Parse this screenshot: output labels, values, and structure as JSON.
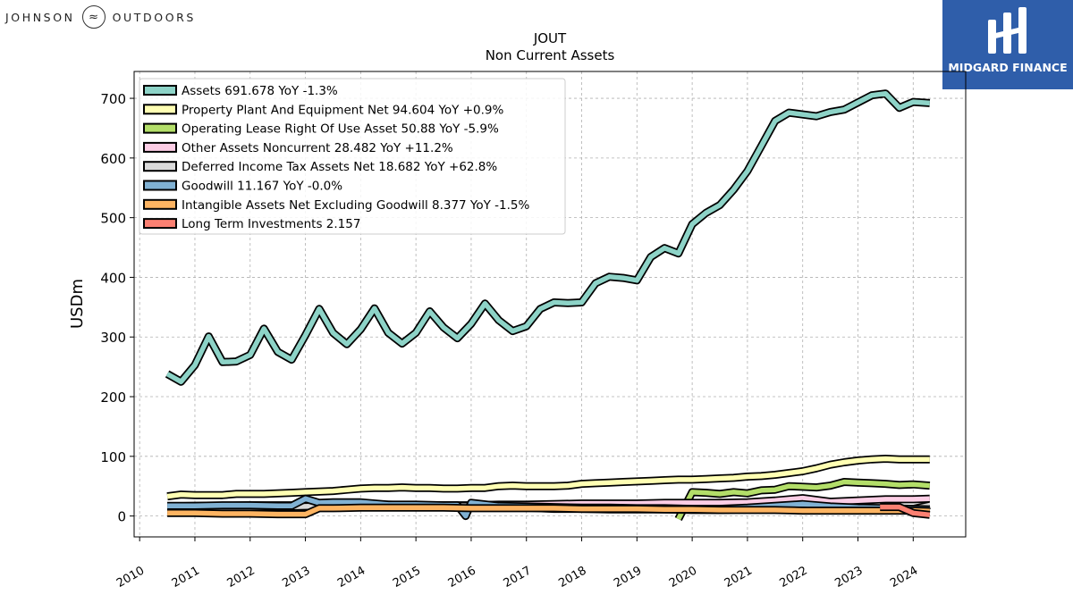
{
  "header": {
    "company_logo_left": "JOHNSON",
    "company_logo_right": "OUTDOORS",
    "brand_name": "MIDGARD FINANCE"
  },
  "chart_data": {
    "type": "line",
    "title": "JOUT",
    "subtitle": "Non Current  Assets",
    "ylabel": "USDm",
    "xlabel": "",
    "xlim": [
      2009.9,
      2024.95
    ],
    "ylim": [
      -35,
      745
    ],
    "yticks": [
      0,
      100,
      200,
      300,
      400,
      500,
      600,
      700
    ],
    "xticks": [
      2010,
      2011,
      2012,
      2013,
      2014,
      2015,
      2016,
      2017,
      2018,
      2019,
      2020,
      2021,
      2022,
      2023,
      2024
    ],
    "grid": true,
    "legend_position": "top-left",
    "series": [
      {
        "name": "Assets",
        "legend": "Assets  691.678 YoY -1.3%",
        "color": "#8dd3c7",
        "x": [
          2010.5,
          2010.75,
          2011.0,
          2011.25,
          2011.5,
          2011.75,
          2012.0,
          2012.25,
          2012.5,
          2012.75,
          2013.0,
          2013.25,
          2013.5,
          2013.75,
          2014.0,
          2014.25,
          2014.5,
          2014.75,
          2015.0,
          2015.25,
          2015.5,
          2015.75,
          2016.0,
          2016.25,
          2016.5,
          2016.75,
          2017.0,
          2017.25,
          2017.5,
          2017.75,
          2018.0,
          2018.25,
          2018.5,
          2018.75,
          2019.0,
          2019.25,
          2019.5,
          2019.75,
          2020.0,
          2020.25,
          2020.5,
          2020.75,
          2021.0,
          2021.25,
          2021.5,
          2021.75,
          2022.0,
          2022.25,
          2022.5,
          2022.75,
          2023.0,
          2023.25,
          2023.5,
          2023.75,
          2024.0,
          2024.3
        ],
        "values": [
          238,
          225,
          253,
          301,
          258,
          259,
          270,
          314,
          275,
          262,
          303,
          347,
          307,
          288,
          313,
          348,
          307,
          289,
          307,
          343,
          316,
          298,
          322,
          356,
          328,
          310,
          318,
          347,
          358,
          357,
          358,
          390,
          401,
          399,
          395,
          434,
          449,
          440,
          489,
          508,
          521,
          547,
          578,
          620,
          662,
          676,
          673,
          670,
          677,
          681,
          693,
          705,
          708,
          684,
          694,
          692
        ]
      },
      {
        "name": "Property Plant And Equipment Net",
        "legend": "Property Plant And Equipment Net  94.604 YoY +0.9%",
        "color": "#ffffb3",
        "x": [
          2010.5,
          2010.75,
          2011.0,
          2011.25,
          2011.5,
          2011.75,
          2012.0,
          2012.25,
          2012.5,
          2012.75,
          2013.0,
          2013.25,
          2013.5,
          2013.75,
          2014.0,
          2014.25,
          2014.5,
          2014.75,
          2015.0,
          2015.25,
          2015.5,
          2015.75,
          2016.0,
          2016.25,
          2016.5,
          2016.75,
          2017.0,
          2017.25,
          2017.5,
          2017.75,
          2018.0,
          2018.25,
          2018.5,
          2018.75,
          2019.0,
          2019.25,
          2019.5,
          2019.75,
          2020.0,
          2020.25,
          2020.5,
          2020.75,
          2021.0,
          2021.25,
          2021.5,
          2021.75,
          2022.0,
          2022.25,
          2022.5,
          2022.75,
          2023.0,
          2023.25,
          2023.5,
          2023.75,
          2024.0,
          2024.3
        ],
        "values": [
          33,
          36,
          35,
          35,
          35,
          37,
          37,
          37,
          38,
          39,
          40,
          41,
          42,
          44,
          46,
          47,
          47,
          48,
          47,
          47,
          46,
          46,
          47,
          47,
          50,
          51,
          50,
          50,
          50,
          51,
          54,
          55,
          56,
          57,
          58,
          59,
          60,
          61,
          61,
          62,
          63,
          64,
          66,
          67,
          69,
          72,
          75,
          80,
          86,
          90,
          93,
          95,
          96,
          95,
          95,
          95
        ]
      },
      {
        "name": "Operating Lease Right Of Use Asset",
        "legend": "Operating Lease Right Of Use Asset  50.88 YoY -5.9%",
        "color": "#b3de69",
        "x": [
          2019.75,
          2020.0,
          2020.25,
          2020.5,
          2020.75,
          2021.0,
          2021.25,
          2021.5,
          2021.75,
          2022.0,
          2022.25,
          2022.5,
          2022.75,
          2023.0,
          2023.25,
          2023.5,
          2023.75,
          2024.0,
          2024.3
        ],
        "values": [
          -5,
          40,
          39,
          37,
          40,
          38,
          43,
          44,
          50,
          49,
          48,
          51,
          57,
          56,
          55,
          54,
          52,
          53,
          51
        ]
      },
      {
        "name": "Other Assets Noncurrent",
        "legend": "Other Assets Noncurrent  28.482 YoY +11.2%",
        "color": "#fccde5",
        "x": [
          2010.5,
          2011.0,
          2011.5,
          2012.0,
          2012.5,
          2013.0,
          2013.5,
          2014.0,
          2014.5,
          2015.0,
          2015.5,
          2016.0,
          2016.5,
          2017.0,
          2017.5,
          2018.0,
          2018.5,
          2019.0,
          2019.5,
          2020.0,
          2020.5,
          2021.0,
          2021.5,
          2022.0,
          2022.5,
          2023.0,
          2023.5,
          2024.0,
          2024.3
        ],
        "values": [
          16,
          17,
          17,
          18,
          18,
          18,
          19,
          19,
          19,
          18,
          18,
          18,
          19,
          19,
          20,
          21,
          21,
          21,
          22,
          22,
          22,
          23,
          26,
          30,
          24,
          26,
          28,
          28,
          29
        ]
      },
      {
        "name": "Deferred Income Tax Assets Net",
        "legend": "Deferred Income Tax Assets Net  18.682 YoY +62.8%",
        "color": "#d9d9d9",
        "x": [
          2010.5,
          2011.0,
          2011.5,
          2012.0,
          2012.5,
          2013.0,
          2013.5,
          2014.0,
          2014.5,
          2015.0,
          2015.5,
          2016.0,
          2016.5,
          2017.0,
          2017.5,
          2018.0,
          2018.5,
          2019.0,
          2019.5,
          2020.0,
          2020.5,
          2021.0,
          2021.5,
          2022.0,
          2022.5,
          2023.0,
          2023.5,
          2024.0,
          2024.3
        ],
        "values": [
          14,
          14,
          15,
          15,
          15,
          16,
          17,
          18,
          18,
          18,
          17,
          17,
          16,
          14,
          12,
          12,
          11,
          11,
          11,
          10,
          10,
          11,
          12,
          13,
          12,
          11,
          11,
          12,
          18
        ]
      },
      {
        "name": "Goodwill",
        "legend": "Goodwill  11.167 YoY -0.0%",
        "color": "#80b1d3",
        "x": [
          2010.5,
          2011.0,
          2011.5,
          2012.0,
          2012.5,
          2012.75,
          2013.0,
          2013.25,
          2013.5,
          2014.0,
          2014.5,
          2015.0,
          2015.5,
          2015.75,
          2015.9,
          2016.0,
          2016.5,
          2017.0,
          2017.5,
          2018.0,
          2018.5,
          2019.0,
          2019.5,
          2020.0,
          2020.5,
          2021.0,
          2021.5,
          2022.0,
          2022.5,
          2023.0,
          2023.5,
          2024.0,
          2024.3
        ],
        "values": [
          17,
          17,
          18,
          18,
          17,
          17,
          29,
          22,
          23,
          23,
          19,
          19,
          18,
          18,
          0,
          22,
          17,
          16,
          15,
          14,
          14,
          13,
          13,
          12,
          12,
          14,
          17,
          20,
          16,
          14,
          13,
          12,
          11
        ]
      },
      {
        "name": "Intangible Assets Net Excluding Goodwill",
        "legend": "Intangible Assets Net Excluding Goodwill  8.377 YoY -1.5%",
        "color": "#fdb462",
        "x": [
          2010.5,
          2011.0,
          2011.5,
          2012.0,
          2012.5,
          2013.0,
          2013.25,
          2013.5,
          2014.0,
          2014.5,
          2015.0,
          2015.5,
          2016.0,
          2016.5,
          2017.0,
          2017.5,
          2018.0,
          2018.5,
          2019.0,
          2019.5,
          2020.0,
          2020.5,
          2021.0,
          2021.5,
          2022.0,
          2022.5,
          2023.0,
          2023.5,
          2024.0,
          2024.3
        ],
        "values": [
          5,
          5,
          4,
          4,
          3,
          3,
          13,
          13,
          14,
          14,
          14,
          14,
          13,
          13,
          13,
          13,
          12,
          12,
          12,
          11,
          11,
          10,
          10,
          10,
          9,
          9,
          9,
          9,
          9,
          8
        ]
      },
      {
        "name": "Long Term Investments",
        "legend": "Long Term Investments  2.157",
        "color": "#fb8072",
        "x": [
          2023.4,
          2023.75,
          2024.0,
          2024.3
        ],
        "values": [
          15,
          15,
          5,
          2
        ]
      }
    ]
  }
}
